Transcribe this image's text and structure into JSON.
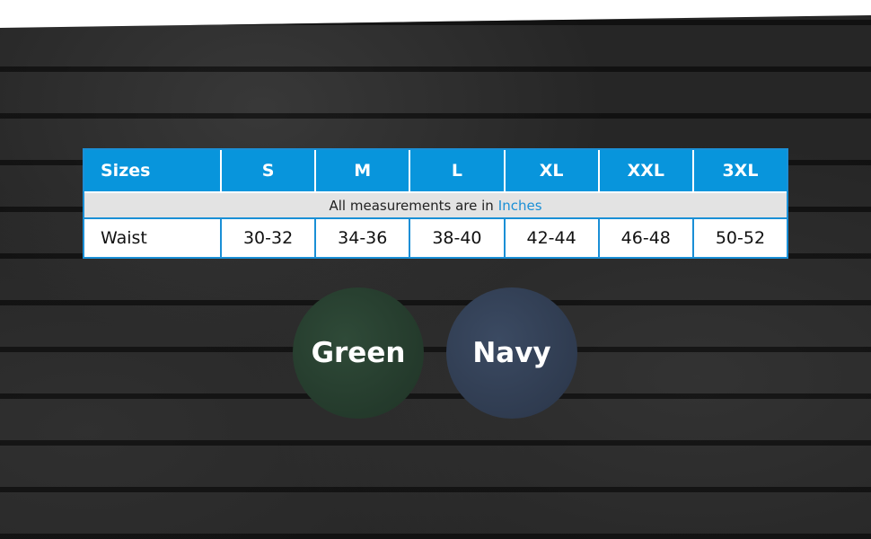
{
  "size_chart": {
    "headers": [
      "Sizes",
      "S",
      "M",
      "L",
      "XL",
      "XXL",
      "3XL"
    ],
    "note_prefix": "All measurements are in",
    "note_unit": "Inches",
    "rows": [
      {
        "label": "Waist",
        "values": [
          "30-32",
          "34-36",
          "38-40",
          "42-44",
          "46-48",
          "50-52"
        ]
      }
    ]
  },
  "colors": [
    {
      "label": "Green",
      "hex": "#243a2c"
    },
    {
      "label": "Navy",
      "hex": "#323e54"
    }
  ],
  "accent": "#0895dc"
}
